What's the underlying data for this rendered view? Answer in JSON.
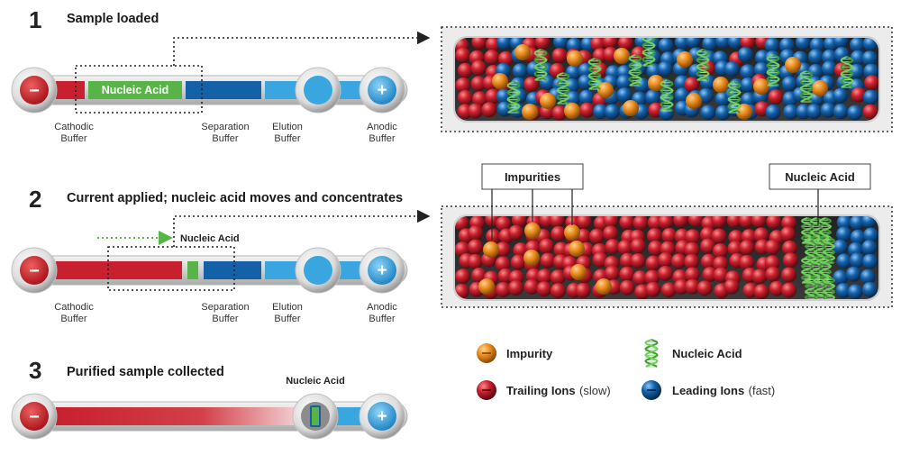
{
  "colors": {
    "trailing": "#c8202e",
    "leading": "#1561a8",
    "impurity": "#e8891c",
    "nucleic": "#58b447",
    "elution": "#3aa6e0",
    "cathode": "#d32a2e",
    "anode": "#3aa6e0"
  },
  "steps": [
    {
      "number": "1",
      "title": "Sample loaded",
      "sample_label": "Nucleic Acid",
      "labels": {
        "cathodic": [
          "Cathodic",
          "Buffer"
        ],
        "separation": [
          "Separation",
          "Buffer"
        ],
        "elution": [
          "Elution",
          "Buffer"
        ],
        "anodic": [
          "Anodic",
          "Buffer"
        ]
      }
    },
    {
      "number": "2",
      "title": "Current applied; nucleic acid moves and concentrates",
      "arrow_label": "Nucleic Acid",
      "labels": {
        "cathodic": [
          "Cathodic",
          "Buffer"
        ],
        "separation": [
          "Separation",
          "Buffer"
        ],
        "elution": [
          "Elution",
          "Buffer"
        ],
        "anodic": [
          "Anodic",
          "Buffer"
        ]
      },
      "callouts": {
        "impurities": "Impurities",
        "nucleic": "Nucleic Acid"
      }
    },
    {
      "number": "3",
      "title": "Purified sample collected",
      "collected_label": "Nucleic Acid"
    }
  ],
  "electrodes": {
    "cathode_symbol": "−",
    "anode_symbol": "+"
  },
  "legend": {
    "impurity": {
      "name": "Impurity"
    },
    "nucleic": {
      "name": "Nucleic Acid"
    },
    "trailing": {
      "name": "Trailing Ions",
      "note": "(slow)"
    },
    "leading": {
      "name": "Leading Ions",
      "note": "(fast)"
    }
  }
}
